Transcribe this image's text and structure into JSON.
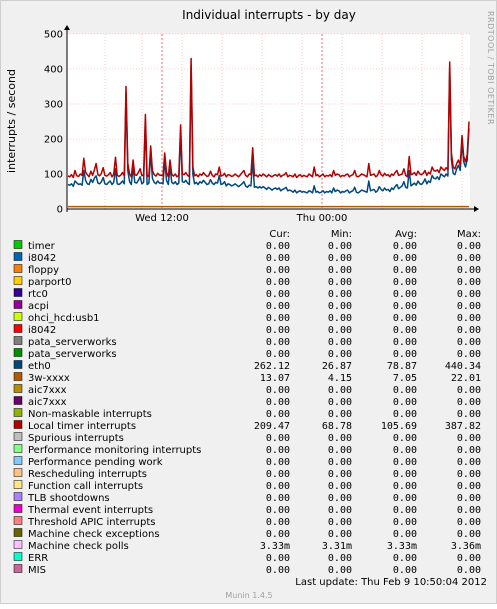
{
  "chart_data": {
    "type": "line",
    "title": "Individual interrupts - by day",
    "ylabel": "interrupts / second",
    "watermark": "RRDTOOL / TOBI OETIKER",
    "ylim": [
      0,
      500
    ],
    "y_ticks": [
      "0",
      "100",
      "200",
      "300",
      "400",
      "500"
    ],
    "x_ticks": [
      "Wed 12:00",
      "Thu 00:00"
    ],
    "grid": true,
    "columns": [
      "Cur:",
      "Min:",
      "Avg:",
      "Max:"
    ],
    "series": [
      {
        "name": "timer",
        "color": "#00cc00",
        "cur": "0.00",
        "min": "0.00",
        "avg": "0.00",
        "max": "0.00"
      },
      {
        "name": "i8042",
        "color": "#0066b3",
        "cur": "0.00",
        "min": "0.00",
        "avg": "0.00",
        "max": "0.00"
      },
      {
        "name": "floppy",
        "color": "#ff8000",
        "cur": "0.00",
        "min": "0.00",
        "avg": "0.00",
        "max": "0.00"
      },
      {
        "name": "parport0",
        "color": "#ffcc00",
        "cur": "0.00",
        "min": "0.00",
        "avg": "0.00",
        "max": "0.00"
      },
      {
        "name": "rtc0",
        "color": "#330099",
        "cur": "0.00",
        "min": "0.00",
        "avg": "0.00",
        "max": "0.00"
      },
      {
        "name": "acpi",
        "color": "#990099",
        "cur": "0.00",
        "min": "0.00",
        "avg": "0.00",
        "max": "0.00"
      },
      {
        "name": "ohci_hcd:usb1",
        "color": "#ccff00",
        "cur": "0.00",
        "min": "0.00",
        "avg": "0.00",
        "max": "0.00"
      },
      {
        "name": "i8042",
        "color": "#ff0000",
        "cur": "0.00",
        "min": "0.00",
        "avg": "0.00",
        "max": "0.00"
      },
      {
        "name": "pata_serverworks",
        "color": "#808080",
        "cur": "0.00",
        "min": "0.00",
        "avg": "0.00",
        "max": "0.00"
      },
      {
        "name": "pata_serverworks",
        "color": "#008f00",
        "cur": "0.00",
        "min": "0.00",
        "avg": "0.00",
        "max": "0.00"
      },
      {
        "name": "eth0",
        "color": "#00487d",
        "cur": "262.12",
        "min": "26.87",
        "avg": "78.87",
        "max": "440.34"
      },
      {
        "name": "3w-xxxx",
        "color": "#b35a00",
        "cur": "13.07",
        "min": "4.15",
        "avg": "7.05",
        "max": "22.01"
      },
      {
        "name": "aic7xxx",
        "color": "#b38f00",
        "cur": "0.00",
        "min": "0.00",
        "avg": "0.00",
        "max": "0.00"
      },
      {
        "name": "aic7xxx",
        "color": "#6b006b",
        "cur": "0.00",
        "min": "0.00",
        "avg": "0.00",
        "max": "0.00"
      },
      {
        "name": "Non-maskable interrupts",
        "color": "#8fb300",
        "cur": "0.00",
        "min": "0.00",
        "avg": "0.00",
        "max": "0.00"
      },
      {
        "name": "Local timer interrupts",
        "color": "#b30000",
        "cur": "209.47",
        "min": "68.78",
        "avg": "105.69",
        "max": "387.82"
      },
      {
        "name": "Spurious interrupts",
        "color": "#bebebe",
        "cur": "0.00",
        "min": "0.00",
        "avg": "0.00",
        "max": "0.00"
      },
      {
        "name": "Performance monitoring interrupts",
        "color": "#80ff80",
        "cur": "0.00",
        "min": "0.00",
        "avg": "0.00",
        "max": "0.00"
      },
      {
        "name": "Performance pending work",
        "color": "#80c9ff",
        "cur": "0.00",
        "min": "0.00",
        "avg": "0.00",
        "max": "0.00"
      },
      {
        "name": "Rescheduling interrupts",
        "color": "#ffc080",
        "cur": "0.00",
        "min": "0.00",
        "avg": "0.00",
        "max": "0.00"
      },
      {
        "name": "Function call interrupts",
        "color": "#ffe680",
        "cur": "0.00",
        "min": "0.00",
        "avg": "0.00",
        "max": "0.00"
      },
      {
        "name": "TLB shootdowns",
        "color": "#aa80ff",
        "cur": "0.00",
        "min": "0.00",
        "avg": "0.00",
        "max": "0.00"
      },
      {
        "name": "Thermal event interrupts",
        "color": "#ee00cc",
        "cur": "0.00",
        "min": "0.00",
        "avg": "0.00",
        "max": "0.00"
      },
      {
        "name": "Threshold APIC interrupts",
        "color": "#ff8080",
        "cur": "0.00",
        "min": "0.00",
        "avg": "0.00",
        "max": "0.00"
      },
      {
        "name": "Machine check exceptions",
        "color": "#666600",
        "cur": "0.00",
        "min": "0.00",
        "avg": "0.00",
        "max": "0.00"
      },
      {
        "name": "Machine check polls",
        "color": "#ffbfff",
        "cur": "3.33m",
        "min": "3.31m",
        "avg": "3.33m",
        "max": "3.36m"
      },
      {
        "name": "ERR",
        "color": "#00ffcc",
        "cur": "0.00",
        "min": "0.00",
        "avg": "0.00",
        "max": "0.00"
      },
      {
        "name": "MIS",
        "color": "#cc6699",
        "cur": "0.00",
        "min": "0.00",
        "avg": "0.00",
        "max": "0.00"
      }
    ],
    "plotted": {
      "local_timer": [
        95,
        92,
        98,
        90,
        110,
        95,
        93,
        100,
        96,
        145,
        105,
        98,
        92,
        108,
        96,
        112,
        130,
        98,
        95,
        102,
        118,
        96,
        94,
        98,
        104,
        92,
        99,
        148,
        96,
        93,
        97,
        104,
        95,
        350,
        130,
        100,
        92,
        140,
        98,
        96,
        105,
        115,
        95,
        98,
        270,
        92,
        96,
        180,
        110,
        98,
        94,
        102,
        97,
        96,
        95,
        160,
        105,
        92,
        140,
        98,
        94,
        100,
        92,
        96,
        240,
        100,
        98,
        104,
        96,
        92,
        430,
        120,
        95,
        98,
        92,
        100,
        96,
        104,
        98,
        93,
        95,
        108,
        96,
        92,
        100,
        98,
        120,
        94,
        96,
        102,
        92,
        98,
        97,
        93,
        95,
        100,
        96,
        92,
        98,
        104,
        110,
        96,
        92,
        100,
        98,
        175,
        95,
        97,
        92,
        98,
        94,
        100,
        96,
        92,
        98,
        95,
        92,
        96,
        98,
        94,
        100,
        92,
        96,
        98,
        104,
        92,
        96,
        95,
        92,
        100,
        90,
        95,
        98,
        92,
        96,
        94,
        92,
        100,
        96,
        92,
        120,
        95,
        98,
        92,
        96,
        100,
        92,
        96,
        94,
        98,
        92,
        110,
        96,
        100,
        98,
        92,
        96,
        94,
        98,
        100,
        92,
        96,
        98,
        110,
        94,
        92,
        96,
        100,
        98,
        95,
        92,
        130,
        96,
        98,
        100,
        92,
        96,
        110,
        98,
        94,
        102,
        96,
        98,
        92,
        100,
        96,
        104,
        110,
        96,
        98,
        100,
        115,
        96,
        92,
        150,
        98,
        100,
        104,
        96,
        108,
        100,
        98,
        102,
        110,
        96,
        105,
        100,
        120,
        110,
        108,
        112,
        104,
        120,
        115,
        110,
        118,
        112,
        420,
        160,
        120,
        115,
        130,
        140,
        125,
        210,
        150,
        135,
        155,
        250
      ],
      "eth0": [
        70,
        68,
        72,
        65,
        80,
        75,
        70,
        72,
        68,
        110,
        82,
        72,
        70,
        85,
        76,
        88,
        95,
        74,
        72,
        78,
        90,
        72,
        70,
        76,
        80,
        70,
        76,
        115,
        72,
        70,
        74,
        80,
        72,
        330,
        110,
        78,
        70,
        120,
        76,
        74,
        82,
        92,
        72,
        76,
        250,
        70,
        74,
        160,
        88,
        76,
        72,
        80,
        74,
        74,
        72,
        140,
        82,
        70,
        120,
        76,
        72,
        78,
        70,
        74,
        220,
        78,
        76,
        82,
        74,
        70,
        410,
        98,
        72,
        76,
        70,
        78,
        74,
        82,
        76,
        70,
        72,
        84,
        74,
        70,
        76,
        74,
        96,
        70,
        72,
        78,
        66,
        72,
        70,
        66,
        68,
        72,
        68,
        64,
        68,
        72,
        78,
        66,
        62,
        68,
        66,
        140,
        62,
        64,
        60,
        64,
        60,
        64,
        60,
        56,
        62,
        58,
        54,
        58,
        60,
        56,
        60,
        52,
        56,
        58,
        62,
        52,
        54,
        52,
        48,
        54,
        46,
        50,
        52,
        48,
        50,
        48,
        46,
        52,
        50,
        46,
        66,
        48,
        50,
        46,
        48,
        52,
        46,
        50,
        48,
        52,
        46,
        60,
        50,
        54,
        52,
        46,
        50,
        48,
        52,
        54,
        46,
        50,
        52,
        62,
        48,
        46,
        50,
        54,
        52,
        50,
        48,
        80,
        52,
        54,
        56,
        48,
        52,
        64,
        56,
        52,
        60,
        54,
        56,
        50,
        60,
        56,
        64,
        70,
        58,
        62,
        66,
        78,
        62,
        60,
        110,
        66,
        70,
        74,
        68,
        80,
        72,
        70,
        76,
        86,
        72,
        80,
        76,
        96,
        88,
        86,
        92,
        84,
        100,
        96,
        92,
        100,
        94,
        400,
        140,
        102,
        98,
        115,
        125,
        110,
        190,
        135,
        120,
        140,
        230
      ],
      "threew": [
        7,
        7,
        7,
        7,
        7,
        7,
        7,
        7,
        7,
        7,
        7,
        7,
        7,
        7,
        7,
        7,
        7,
        7,
        7,
        7,
        7,
        7,
        7,
        7,
        7,
        7,
        7,
        7,
        7,
        7,
        7,
        7,
        7,
        7,
        7,
        7,
        7,
        7,
        7,
        7,
        7,
        7,
        7,
        7,
        7,
        7,
        7,
        7,
        7,
        7,
        7,
        7,
        7,
        7,
        7,
        7,
        7,
        7,
        7,
        7,
        7,
        7,
        7,
        7,
        7,
        7,
        7,
        7,
        7,
        7,
        7,
        7,
        7,
        7,
        7,
        7,
        7,
        7,
        7,
        7,
        7,
        7,
        7,
        7,
        7,
        7,
        7,
        7,
        7,
        7,
        7,
        7,
        7,
        7,
        7,
        7,
        7,
        7,
        7,
        7,
        7,
        7,
        7,
        7,
        7,
        7,
        7,
        7,
        7,
        7,
        7,
        7,
        7,
        7,
        7,
        7,
        7,
        7,
        7,
        7,
        7,
        7,
        7,
        7,
        7,
        7,
        7,
        7,
        7,
        7,
        7,
        7,
        7,
        7,
        7,
        7,
        7,
        7,
        7,
        7,
        7,
        7,
        7,
        7,
        7,
        7,
        7,
        7,
        7,
        7,
        7,
        7,
        7,
        7,
        7,
        7,
        7,
        7,
        7,
        7,
        7,
        7,
        7,
        7,
        7,
        7,
        7,
        7,
        7,
        7,
        7,
        7,
        7,
        7,
        7,
        7,
        7,
        7,
        7,
        7,
        7,
        7,
        7,
        7,
        7,
        7,
        7,
        7,
        7,
        7,
        7,
        7,
        7,
        7,
        7,
        7,
        7,
        7,
        7,
        7,
        7,
        7,
        7,
        7,
        7,
        7,
        7,
        7,
        7,
        7,
        7,
        7,
        7,
        7,
        7,
        7,
        7,
        7,
        7,
        7,
        7,
        7,
        7,
        7,
        7,
        7,
        7,
        7,
        7,
        7,
        7
      ]
    }
  },
  "footer": {
    "last_update": "Last update:  Thu Feb  9 10:50:04 2012",
    "version": "Munin 1.4.5"
  }
}
